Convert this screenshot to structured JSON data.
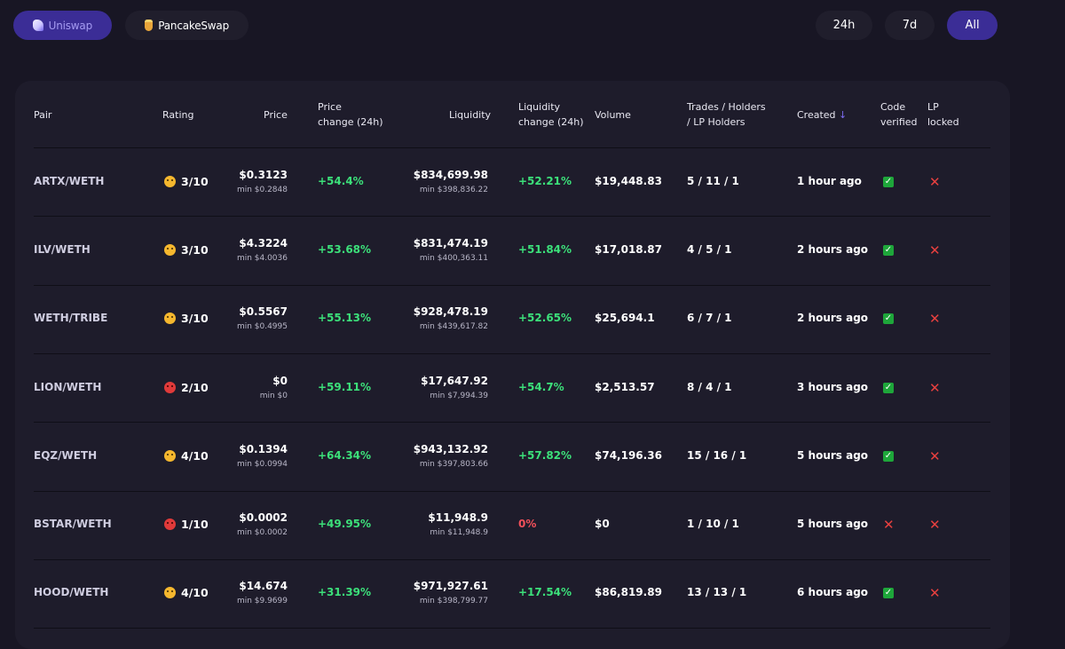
{
  "dex_tabs": [
    {
      "label": "Uniswap",
      "icon": "unicorn-icon",
      "active": true
    },
    {
      "label": "PancakeSwap",
      "icon": "pancake-icon",
      "active": false
    }
  ],
  "time_filters": [
    {
      "label": "24h",
      "active": false
    },
    {
      "label": "7d",
      "active": false
    },
    {
      "label": "All",
      "active": true
    }
  ],
  "table": {
    "headers": {
      "pair": "Pair",
      "rating": "Rating",
      "price": "Price",
      "price_change": [
        "Price",
        "change (24h)"
      ],
      "liquidity": "Liquidity",
      "liquidity_change": [
        "Liquidity",
        "change (24h)"
      ],
      "volume": "Volume",
      "trades": [
        "Trades / Holders",
        "/ LP Holders"
      ],
      "created": "Created",
      "created_sort": "↓",
      "code_verified": [
        "Code",
        "verified"
      ],
      "lp_locked": [
        "LP",
        "locked"
      ]
    },
    "rows": [
      {
        "pair": "ARTX/WETH",
        "rating": "3/10",
        "rating_face": "neutral",
        "price": "$0.3123",
        "price_min": "min $0.2848",
        "price_change": "+54.4%",
        "liquidity": "$834,699.98",
        "liquidity_min": "min $398,836.22",
        "liquidity_change": "+52.21%",
        "liquidity_change_dir": "up",
        "volume": "$19,448.83",
        "trades": "5 / 11 / 1",
        "created": "1 hour ago",
        "code_verified": true,
        "lp_locked": false
      },
      {
        "pair": "ILV/WETH",
        "rating": "3/10",
        "rating_face": "neutral",
        "price": "$4.3224",
        "price_min": "min $4.0036",
        "price_change": "+53.68%",
        "liquidity": "$831,474.19",
        "liquidity_min": "min $400,363.11",
        "liquidity_change": "+51.84%",
        "liquidity_change_dir": "up",
        "volume": "$17,018.87",
        "trades": "4 / 5 / 1",
        "created": "2 hours ago",
        "code_verified": true,
        "lp_locked": false
      },
      {
        "pair": "WETH/TRIBE",
        "rating": "3/10",
        "rating_face": "neutral",
        "price": "$0.5567",
        "price_min": "min $0.4995",
        "price_change": "+55.13%",
        "liquidity": "$928,478.19",
        "liquidity_min": "min $439,617.82",
        "liquidity_change": "+52.65%",
        "liquidity_change_dir": "up",
        "volume": "$25,694.1",
        "trades": "6 / 7 / 1",
        "created": "2 hours ago",
        "code_verified": true,
        "lp_locked": false
      },
      {
        "pair": "LION/WETH",
        "rating": "2/10",
        "rating_face": "angry",
        "price": "$0",
        "price_min": "min $0",
        "price_change": "+59.11%",
        "liquidity": "$17,647.92",
        "liquidity_min": "min $7,994.39",
        "liquidity_change": "+54.7%",
        "liquidity_change_dir": "up",
        "volume": "$2,513.57",
        "trades": "8 / 4 / 1",
        "created": "3 hours ago",
        "code_verified": true,
        "lp_locked": false
      },
      {
        "pair": "EQZ/WETH",
        "rating": "4/10",
        "rating_face": "neutral",
        "price": "$0.1394",
        "price_min": "min $0.0994",
        "price_change": "+64.34%",
        "liquidity": "$943,132.92",
        "liquidity_min": "min $397,803.66",
        "liquidity_change": "+57.82%",
        "liquidity_change_dir": "up",
        "volume": "$74,196.36",
        "trades": "15 / 16 / 1",
        "created": "5 hours ago",
        "code_verified": true,
        "lp_locked": false
      },
      {
        "pair": "BSTAR/WETH",
        "rating": "1/10",
        "rating_face": "angry",
        "price": "$0.0002",
        "price_min": "min $0.0002",
        "price_change": "+49.95%",
        "liquidity": "$11,948.9",
        "liquidity_min": "min $11,948.9",
        "liquidity_change": "0%",
        "liquidity_change_dir": "flat",
        "volume": "$0",
        "trades": "1 / 10 / 1",
        "created": "5 hours ago",
        "code_verified": false,
        "lp_locked": false
      },
      {
        "pair": "HOOD/WETH",
        "rating": "4/10",
        "rating_face": "neutral",
        "price": "$14.674",
        "price_min": "min $9.9699",
        "price_change": "+31.39%",
        "liquidity": "$971,927.61",
        "liquidity_min": "min $398,799.77",
        "liquidity_change": "+17.54%",
        "liquidity_change_dir": "up",
        "volume": "$86,819.89",
        "trades": "13 / 13 / 1",
        "created": "6 hours ago",
        "code_verified": true,
        "lp_locked": false
      }
    ]
  },
  "colors": {
    "background": "#181624",
    "card": "#1e1c2b",
    "accent": "#3b2d96",
    "positive": "#3ce07a",
    "negative": "#f1505a"
  }
}
